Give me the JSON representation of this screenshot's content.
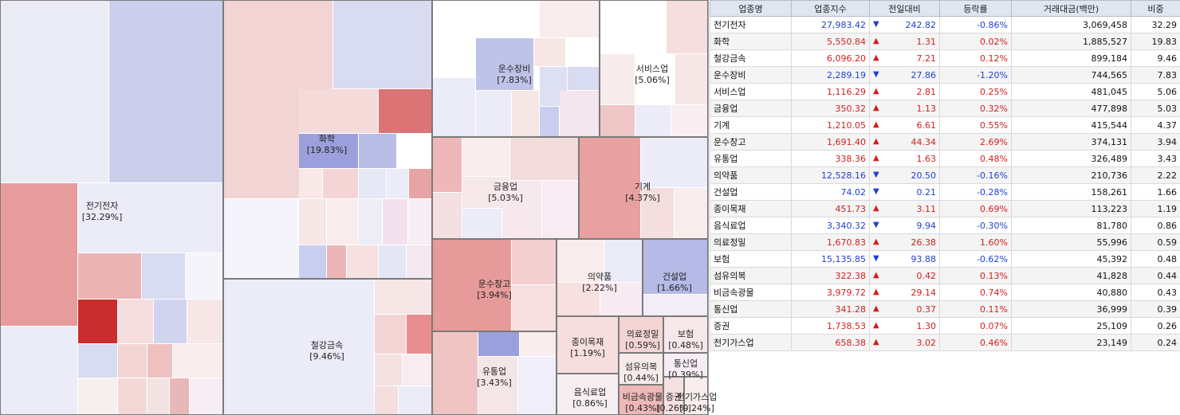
{
  "treemap": {
    "sectors": [
      {
        "name": "전기전자",
        "pct": "[32.29%]"
      },
      {
        "name": "화학",
        "pct": "[19.83%]"
      },
      {
        "name": "철강금속",
        "pct": "[9.46%]"
      },
      {
        "name": "운수장비",
        "pct": "[7.83%]"
      },
      {
        "name": "서비스업",
        "pct": "[5.06%]"
      },
      {
        "name": "금융업",
        "pct": "[5.03%]"
      },
      {
        "name": "기계",
        "pct": "[4.37%]"
      },
      {
        "name": "운수창고",
        "pct": "[3.94%]"
      },
      {
        "name": "유통업",
        "pct": "[3.43%]"
      },
      {
        "name": "의약품",
        "pct": "[2.22%]"
      },
      {
        "name": "건설업",
        "pct": "[1.66%]"
      },
      {
        "name": "종이목재",
        "pct": "[1.19%]"
      },
      {
        "name": "음식료업",
        "pct": "[0.86%]"
      },
      {
        "name": "의료정밀",
        "pct": "[0.59%]"
      },
      {
        "name": "보험",
        "pct": "[0.48%]"
      },
      {
        "name": "섬유의복",
        "pct": "[0.44%]"
      },
      {
        "name": "비금속광물",
        "pct": "[0.43%]"
      },
      {
        "name": "통신업",
        "pct": "[0.39%]"
      },
      {
        "name": "증권",
        "pct": "[0.26%]"
      },
      {
        "name": "전기가스업",
        "pct": "[0.24%]"
      }
    ]
  },
  "table": {
    "headers": [
      "업종명",
      "업종지수",
      "전일대비",
      "등락률",
      "거래대금(백만)",
      "비중"
    ],
    "arrow_up": "▲",
    "arrow_down": "▼",
    "rows": [
      {
        "name": "전기전자",
        "index": "27,983.42",
        "dir": "down",
        "change": "242.82",
        "rate": "-0.86%",
        "amount": "3,069,458",
        "weight": "32.29"
      },
      {
        "name": "화학",
        "index": "5,550.84",
        "dir": "up",
        "change": "1.31",
        "rate": "0.02%",
        "amount": "1,885,527",
        "weight": "19.83"
      },
      {
        "name": "철강금속",
        "index": "6,096.20",
        "dir": "up",
        "change": "7.21",
        "rate": "0.12%",
        "amount": "899,184",
        "weight": "9.46"
      },
      {
        "name": "운수장비",
        "index": "2,289.19",
        "dir": "down",
        "change": "27.86",
        "rate": "-1.20%",
        "amount": "744,565",
        "weight": "7.83"
      },
      {
        "name": "서비스업",
        "index": "1,116.29",
        "dir": "up",
        "change": "2.81",
        "rate": "0.25%",
        "amount": "481,045",
        "weight": "5.06"
      },
      {
        "name": "금융업",
        "index": "350.32",
        "dir": "up",
        "change": "1.13",
        "rate": "0.32%",
        "amount": "477,898",
        "weight": "5.03"
      },
      {
        "name": "기계",
        "index": "1,210.05",
        "dir": "up",
        "change": "6.61",
        "rate": "0.55%",
        "amount": "415,544",
        "weight": "4.37"
      },
      {
        "name": "운수창고",
        "index": "1,691.40",
        "dir": "up",
        "change": "44.34",
        "rate": "2.69%",
        "amount": "374,131",
        "weight": "3.94"
      },
      {
        "name": "유통업",
        "index": "338.36",
        "dir": "up",
        "change": "1.63",
        "rate": "0.48%",
        "amount": "326,489",
        "weight": "3.43"
      },
      {
        "name": "의약품",
        "index": "12,528.16",
        "dir": "down",
        "change": "20.50",
        "rate": "-0.16%",
        "amount": "210,736",
        "weight": "2.22"
      },
      {
        "name": "건설업",
        "index": "74.02",
        "dir": "down",
        "change": "0.21",
        "rate": "-0.28%",
        "amount": "158,261",
        "weight": "1.66"
      },
      {
        "name": "종이목재",
        "index": "451.73",
        "dir": "up",
        "change": "3.11",
        "rate": "0.69%",
        "amount": "113,223",
        "weight": "1.19"
      },
      {
        "name": "음식료업",
        "index": "3,340.32",
        "dir": "down",
        "change": "9.94",
        "rate": "-0.30%",
        "amount": "81,780",
        "weight": "0.86"
      },
      {
        "name": "의료정밀",
        "index": "1,670.83",
        "dir": "up",
        "change": "26.38",
        "rate": "1.60%",
        "amount": "55,996",
        "weight": "0.59"
      },
      {
        "name": "보험",
        "index": "15,135.85",
        "dir": "down",
        "change": "93.88",
        "rate": "-0.62%",
        "amount": "45,392",
        "weight": "0.48"
      },
      {
        "name": "섬유의복",
        "index": "322.38",
        "dir": "up",
        "change": "0.42",
        "rate": "0.13%",
        "amount": "41,828",
        "weight": "0.44"
      },
      {
        "name": "비금속광물",
        "index": "3,979.72",
        "dir": "up",
        "change": "29.14",
        "rate": "0.74%",
        "amount": "40,880",
        "weight": "0.43"
      },
      {
        "name": "통신업",
        "index": "341.28",
        "dir": "up",
        "change": "0.37",
        "rate": "0.11%",
        "amount": "36,999",
        "weight": "0.39"
      },
      {
        "name": "증권",
        "index": "1,738.53",
        "dir": "up",
        "change": "1.30",
        "rate": "0.07%",
        "amount": "25,109",
        "weight": "0.26"
      },
      {
        "name": "전기가스업",
        "index": "658.38",
        "dir": "up",
        "change": "3.02",
        "rate": "0.46%",
        "amount": "23,149",
        "weight": "0.24"
      }
    ]
  }
}
